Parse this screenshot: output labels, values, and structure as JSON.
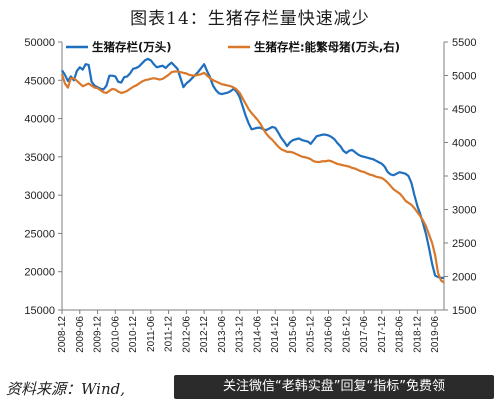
{
  "title": "图表14：生猪存栏量快速减少",
  "source": "资料来源：Wind,",
  "banner": "关注微信“老韩实盘”回复“指标”免费领",
  "colors": {
    "series1": "#1f6fbf",
    "series2": "#d9782a",
    "axis": "#7f7f7f"
  },
  "chart_data": {
    "type": "line",
    "x": [
      "2008-12",
      "2009-01",
      "2009-02",
      "2009-03",
      "2009-04",
      "2009-05",
      "2009-06",
      "2009-07",
      "2009-08",
      "2009-09",
      "2009-10",
      "2009-11",
      "2009-12",
      "2010-01",
      "2010-02",
      "2010-03",
      "2010-04",
      "2010-05",
      "2010-06",
      "2010-07",
      "2010-08",
      "2010-09",
      "2010-10",
      "2010-11",
      "2010-12",
      "2011-01",
      "2011-02",
      "2011-03",
      "2011-04",
      "2011-05",
      "2011-06",
      "2011-07",
      "2011-08",
      "2011-09",
      "2011-10",
      "2011-11",
      "2011-12",
      "2012-01",
      "2012-02",
      "2012-03",
      "2012-04",
      "2012-05",
      "2012-06",
      "2012-07",
      "2012-08",
      "2012-09",
      "2012-10",
      "2012-11",
      "2012-12",
      "2013-01",
      "2013-02",
      "2013-03",
      "2013-04",
      "2013-05",
      "2013-06",
      "2013-07",
      "2013-08",
      "2013-09",
      "2013-10",
      "2013-11",
      "2013-12",
      "2014-01",
      "2014-02",
      "2014-03",
      "2014-04",
      "2014-05",
      "2014-06",
      "2014-07",
      "2014-08",
      "2014-09",
      "2014-10",
      "2014-11",
      "2014-12",
      "2015-01",
      "2015-02",
      "2015-03",
      "2015-04",
      "2015-05",
      "2015-06",
      "2015-07",
      "2015-08",
      "2015-09",
      "2015-10",
      "2015-11",
      "2015-12",
      "2016-01",
      "2016-02",
      "2016-03",
      "2016-04",
      "2016-05",
      "2016-06",
      "2016-07",
      "2016-08",
      "2016-09",
      "2016-10",
      "2016-11",
      "2016-12",
      "2017-01",
      "2017-02",
      "2017-03",
      "2017-04",
      "2017-05",
      "2017-06",
      "2017-07",
      "2017-08",
      "2017-09",
      "2017-10",
      "2017-11",
      "2017-12",
      "2018-01",
      "2018-02",
      "2018-03",
      "2018-04",
      "2018-05",
      "2018-06",
      "2018-07",
      "2018-08",
      "2018-09",
      "2018-10",
      "2018-11",
      "2018-12",
      "2019-01",
      "2019-02",
      "2019-03",
      "2019-04",
      "2019-05",
      "2019-06",
      "2019-07",
      "2019-08",
      "2019-09"
    ],
    "x_tick_labels": [
      "2008-12",
      "2009-06",
      "2009-12",
      "2010-06",
      "2010-12",
      "2011-06",
      "2011-12",
      "2012-06",
      "2012-12",
      "2013-06",
      "2013-12",
      "2014-06",
      "2014-12",
      "2015-06",
      "2015-12",
      "2016-06",
      "2016-12",
      "2017-06",
      "2017-12",
      "2018-06",
      "2018-12",
      "2019-06"
    ],
    "ylim": [
      15000,
      50000
    ],
    "y_ticks": [
      15000,
      20000,
      25000,
      30000,
      35000,
      40000,
      45000,
      50000
    ],
    "y2lim": [
      1500,
      5500
    ],
    "y2_ticks": [
      1500,
      2000,
      2500,
      3000,
      3500,
      4000,
      4500,
      5000,
      5500
    ],
    "series": [
      {
        "name": "生猪存栏(万头)",
        "axis": "left",
        "values": [
          46300,
          45700,
          44900,
          45500,
          45000,
          46200,
          46700,
          46400,
          47100,
          47000,
          44800,
          44300,
          44100,
          43900,
          43800,
          44300,
          45600,
          45600,
          45500,
          44800,
          44700,
          45400,
          45500,
          45900,
          46500,
          46600,
          46800,
          47200,
          47600,
          47800,
          47600,
          47100,
          46700,
          46800,
          46900,
          46600,
          47000,
          47300,
          46900,
          46500,
          45300,
          44100,
          44600,
          44900,
          45300,
          45700,
          46100,
          46600,
          47100,
          46200,
          45400,
          44300,
          43700,
          43300,
          43200,
          43300,
          43400,
          43600,
          43900,
          43500,
          42800,
          41600,
          40400,
          39400,
          38600,
          38700,
          38800,
          38800,
          38600,
          38500,
          38700,
          38900,
          38800,
          38200,
          37500,
          37000,
          36400,
          36900,
          37200,
          37300,
          37400,
          37200,
          37100,
          37000,
          36700,
          37200,
          37700,
          37800,
          37900,
          37900,
          37800,
          37600,
          37300,
          36800,
          36400,
          35800,
          35500,
          35800,
          35900,
          35600,
          35300,
          35100,
          35000,
          34900,
          34800,
          34700,
          34500,
          34300,
          34100,
          33700,
          33000,
          32700,
          32600,
          32800,
          33000,
          32900,
          32800,
          32500,
          31600,
          30000,
          28600,
          27500,
          26200,
          24800,
          23000,
          21000,
          19500,
          19300,
          19200,
          19200
        ]
      },
      {
        "name": "生猪存栏:能繁母猪(万头,右)",
        "axis": "right",
        "values": [
          5020,
          4880,
          4820,
          4960,
          4960,
          4920,
          4880,
          4840,
          4860,
          4880,
          4850,
          4820,
          4810,
          4780,
          4750,
          4740,
          4770,
          4800,
          4790,
          4760,
          4740,
          4750,
          4770,
          4800,
          4830,
          4850,
          4880,
          4910,
          4930,
          4940,
          4950,
          4960,
          4950,
          4940,
          4950,
          4980,
          5010,
          5050,
          5060,
          5060,
          5050,
          5040,
          5030,
          5010,
          5000,
          5000,
          5010,
          5020,
          5040,
          5000,
          4960,
          4930,
          4910,
          4890,
          4870,
          4860,
          4850,
          4840,
          4820,
          4790,
          4740,
          4660,
          4580,
          4500,
          4440,
          4390,
          4340,
          4280,
          4200,
          4130,
          4080,
          4040,
          3990,
          3940,
          3900,
          3880,
          3860,
          3860,
          3850,
          3830,
          3810,
          3790,
          3780,
          3770,
          3750,
          3720,
          3710,
          3710,
          3720,
          3720,
          3730,
          3720,
          3700,
          3680,
          3670,
          3660,
          3650,
          3640,
          3620,
          3610,
          3590,
          3570,
          3560,
          3540,
          3520,
          3510,
          3490,
          3480,
          3470,
          3440,
          3400,
          3350,
          3300,
          3270,
          3240,
          3190,
          3130,
          3100,
          3070,
          3020,
          2960,
          2900,
          2830,
          2740,
          2620,
          2500,
          2320,
          2050,
          1940,
          1910
        ]
      }
    ]
  }
}
